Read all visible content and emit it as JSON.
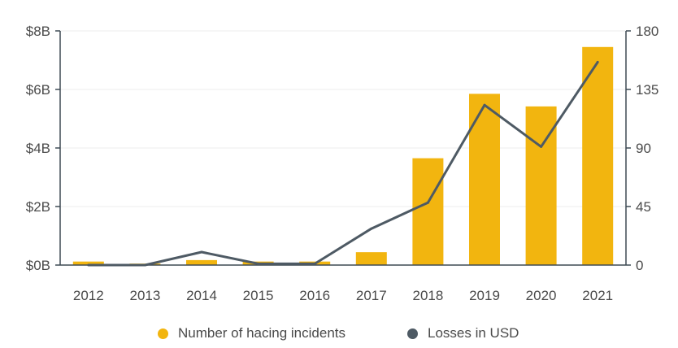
{
  "chart_data": {
    "type": "bar",
    "categories": [
      "2012",
      "2013",
      "2014",
      "2015",
      "2016",
      "2017",
      "2018",
      "2019",
      "2020",
      "2021"
    ],
    "series": [
      {
        "name": "Number of hacing incidents",
        "type": "bar",
        "axis": "left",
        "color": "#f2b50f",
        "values": [
          0.12,
          0.05,
          0.17,
          0.12,
          0.12,
          0.44,
          3.65,
          5.85,
          5.42,
          7.45
        ]
      },
      {
        "name": "Losses in USD",
        "type": "line",
        "axis": "right",
        "color": "#4e5a64",
        "values": [
          0,
          0,
          10,
          1,
          1,
          28,
          48,
          123,
          91,
          156
        ]
      }
    ],
    "left_axis": {
      "min": 0,
      "max": 8,
      "ticks": [
        0,
        2,
        4,
        6,
        8
      ],
      "tick_labels": [
        "$0B",
        "$2B",
        "$4B",
        "$6B",
        "$8B"
      ]
    },
    "right_axis": {
      "min": 0,
      "max": 180,
      "ticks": [
        0,
        45,
        90,
        135,
        180
      ],
      "tick_labels": [
        "0",
        "45",
        "90",
        "135",
        "180"
      ]
    },
    "title": "",
    "xlabel": "",
    "ylabel": "",
    "grid": true,
    "legend_position": "bottom"
  }
}
